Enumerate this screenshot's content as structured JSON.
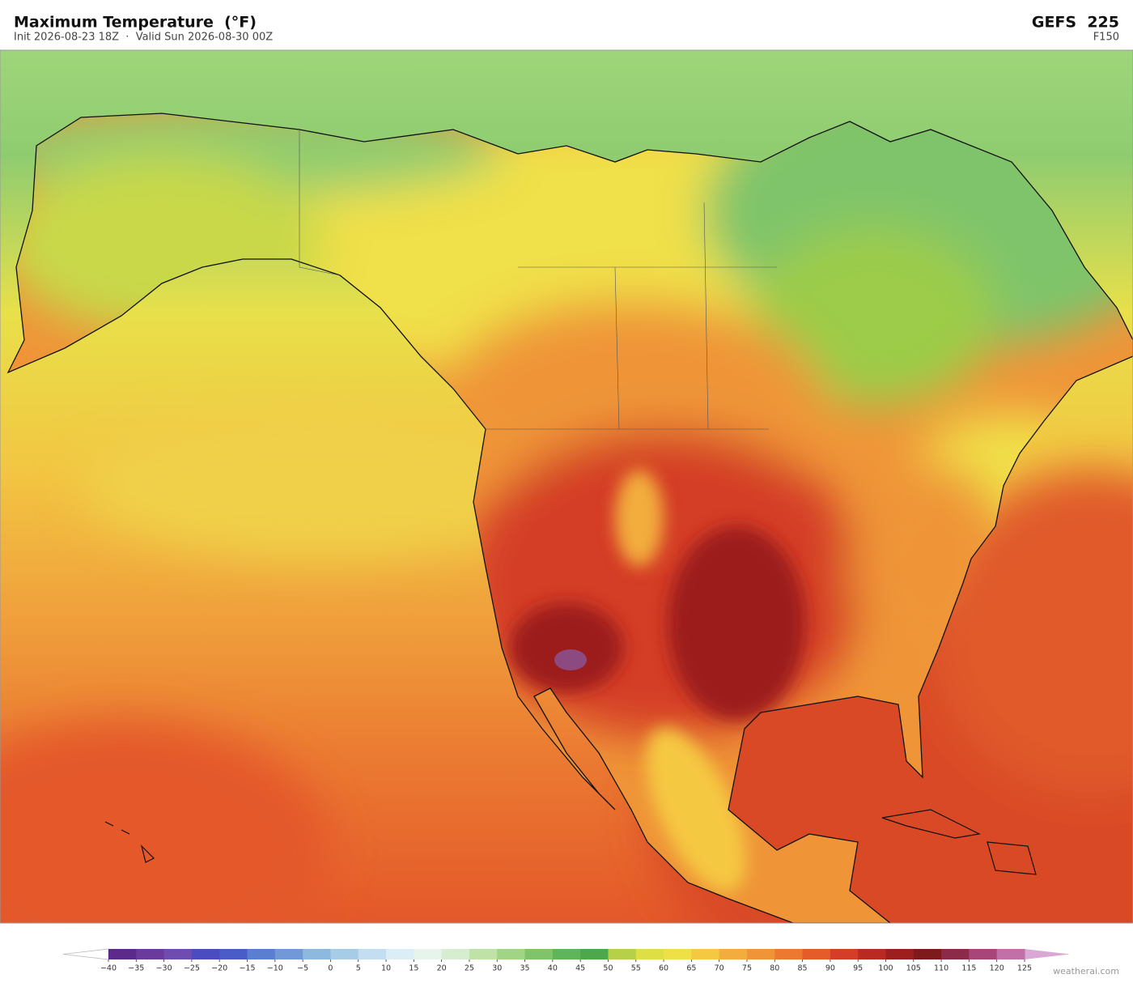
{
  "header": {
    "title": "Maximum Temperature  (°F)",
    "subtitle": "Init 2026-08-23 18Z  ·  Valid Sun 2026-08-30 00Z",
    "model": "GEFS  225",
    "forecast_hour": "F150"
  },
  "colorbar": {
    "ticks": [
      {
        "value": -40,
        "label": "−40"
      },
      {
        "value": -35,
        "label": "−35"
      },
      {
        "value": -30,
        "label": "−30"
      },
      {
        "value": -25,
        "label": "−25"
      },
      {
        "value": -20,
        "label": "−20"
      },
      {
        "value": -15,
        "label": "−15"
      },
      {
        "value": -10,
        "label": "−10"
      },
      {
        "value": -5,
        "label": "−5"
      },
      0,
      5,
      10,
      15,
      20,
      25,
      30,
      35,
      40,
      45,
      50,
      55,
      60,
      65,
      70,
      75,
      80,
      85,
      90,
      95,
      100,
      105,
      110,
      115,
      120,
      125
    ],
    "colors": [
      "#5b2a8a",
      "#6a3a9c",
      "#6f4cb0",
      "#4a4cc0",
      "#4a5cc8",
      "#5b7fd0",
      "#7199d8",
      "#8db8e0",
      "#a6cce8",
      "#c2def0",
      "#dbeef5",
      "#e6f4ec",
      "#d6eecf",
      "#bfe3a6",
      "#a0d585",
      "#7fc46a",
      "#5fb55a",
      "#4ca84a",
      "#b6d04a",
      "#dddf45",
      "#f0e048",
      "#f5c842",
      "#f2ad3e",
      "#ef9538",
      "#eb7a30",
      "#e45c2a",
      "#d43e26",
      "#b82a22",
      "#9c1e1e",
      "#7d1a1c",
      "#8c2a4a",
      "#a8467a",
      "#c270a8"
    ],
    "under_color": "#ffffff",
    "over_color": "#d9a8d4"
  },
  "footer": {
    "credit": "weatherai.com"
  }
}
